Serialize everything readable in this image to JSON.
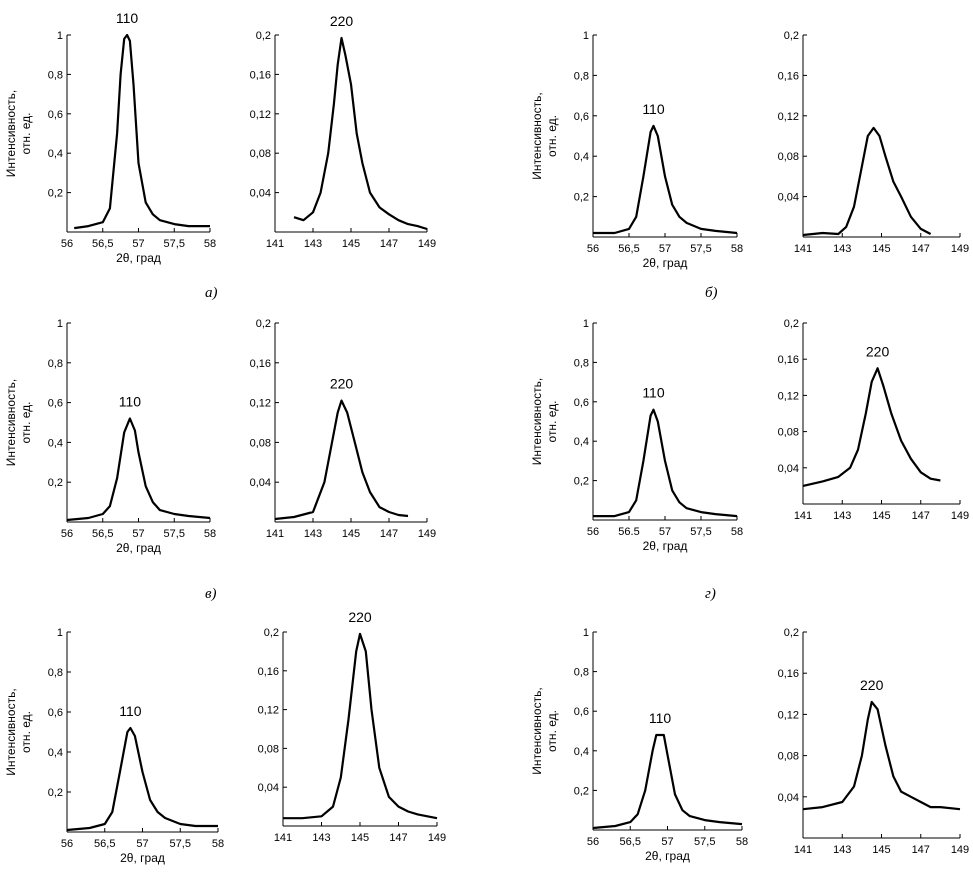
{
  "ylabel_line1": "Интенсивность,",
  "ylabel_line2": "отн. ед.",
  "xlabel": "2θ, град",
  "panel_labels": [
    "а)",
    "б)",
    "в)",
    "г)"
  ],
  "chart_data": [
    {
      "type": "line",
      "peak_label": "110",
      "xlim": [
        56,
        58
      ],
      "ylim": [
        0,
        1
      ],
      "xticks": [
        "56",
        "56,5",
        "57",
        "57,5",
        "58"
      ],
      "yticks": [
        "1",
        "0,8",
        "0,6",
        "0,4",
        "0,2"
      ],
      "peak_center": 56.84,
      "series": [
        {
          "x": [
            56.1,
            56.3,
            56.5,
            56.6,
            56.7,
            56.75,
            56.8,
            56.84,
            56.88,
            56.93,
            57.0,
            57.1,
            57.2,
            57.3,
            57.5,
            57.7,
            58.0
          ],
          "y": [
            0.02,
            0.03,
            0.05,
            0.12,
            0.5,
            0.8,
            0.98,
            1.0,
            0.97,
            0.75,
            0.35,
            0.15,
            0.09,
            0.06,
            0.04,
            0.03,
            0.03
          ]
        }
      ]
    },
    {
      "type": "line",
      "peak_label": "220",
      "xlim": [
        141,
        149
      ],
      "ylim": [
        0,
        0.2
      ],
      "xticks": [
        "141",
        "143",
        "145",
        "147",
        "149"
      ],
      "yticks": [
        "0,2",
        "0,16",
        "0,12",
        "0,08",
        "0,04"
      ],
      "peak_center": 144.5,
      "series": [
        {
          "x": [
            142.0,
            142.5,
            143.0,
            143.4,
            143.8,
            144.1,
            144.3,
            144.5,
            144.7,
            145.0,
            145.3,
            145.6,
            146.0,
            146.5,
            147.0,
            147.5,
            148.0,
            148.5,
            149.0
          ],
          "y": [
            0.015,
            0.012,
            0.02,
            0.04,
            0.08,
            0.13,
            0.17,
            0.197,
            0.18,
            0.15,
            0.1,
            0.07,
            0.04,
            0.025,
            0.018,
            0.012,
            0.008,
            0.006,
            0.003
          ]
        }
      ]
    },
    {
      "type": "line",
      "peak_label": "110",
      "xlim": [
        56,
        58
      ],
      "ylim": [
        0,
        1
      ],
      "xticks": [
        "56",
        "56,5",
        "57",
        "57,5",
        "58"
      ],
      "yticks": [
        "1",
        "0,8",
        "0,6",
        "0,4",
        "0,2"
      ],
      "peak_center": 56.84,
      "series": [
        {
          "x": [
            56.0,
            56.3,
            56.5,
            56.6,
            56.7,
            56.8,
            56.84,
            56.9,
            57.0,
            57.1,
            57.2,
            57.3,
            57.5,
            57.7,
            58.0
          ],
          "y": [
            0.02,
            0.02,
            0.04,
            0.1,
            0.3,
            0.52,
            0.55,
            0.5,
            0.3,
            0.16,
            0.1,
            0.07,
            0.04,
            0.03,
            0.02
          ]
        }
      ]
    },
    {
      "type": "line",
      "xlim": [
        141,
        149
      ],
      "ylim": [
        0,
        0.2
      ],
      "xticks": [
        "141",
        "143",
        "145",
        "147",
        "149"
      ],
      "yticks": [
        "0,2",
        "0,16",
        "0,12",
        "0,08",
        "0,04"
      ],
      "peak_center": 144.6,
      "series": [
        {
          "x": [
            141.0,
            142.0,
            142.8,
            143.2,
            143.6,
            144.0,
            144.3,
            144.6,
            144.9,
            145.2,
            145.6,
            146.0,
            146.5,
            147.0,
            147.5
          ],
          "y": [
            0.002,
            0.004,
            0.003,
            0.01,
            0.03,
            0.07,
            0.1,
            0.108,
            0.1,
            0.08,
            0.055,
            0.04,
            0.02,
            0.008,
            0.003
          ]
        }
      ]
    },
    {
      "type": "line",
      "peak_label": "110",
      "xlim": [
        56,
        58
      ],
      "ylim": [
        0,
        1
      ],
      "xticks": [
        "56",
        "56,5",
        "57",
        "57,5",
        "58"
      ],
      "yticks": [
        "1",
        "0,8",
        "0,6",
        "0,4",
        "0,2"
      ],
      "peak_center": 56.88,
      "series": [
        {
          "x": [
            56.0,
            56.3,
            56.5,
            56.6,
            56.7,
            56.8,
            56.88,
            56.95,
            57.0,
            57.1,
            57.2,
            57.3,
            57.5,
            57.7,
            58.0
          ],
          "y": [
            0.01,
            0.02,
            0.04,
            0.08,
            0.22,
            0.45,
            0.52,
            0.46,
            0.35,
            0.18,
            0.1,
            0.06,
            0.04,
            0.03,
            0.02
          ]
        }
      ]
    },
    {
      "type": "line",
      "peak_label": "220",
      "xlim": [
        141,
        149
      ],
      "ylim": [
        0,
        0.2
      ],
      "xticks": [
        "141",
        "143",
        "145",
        "147",
        "149"
      ],
      "yticks": [
        "0,2",
        "0,16",
        "0,12",
        "0,08",
        "0,04"
      ],
      "peak_center": 144.5,
      "series": [
        {
          "x": [
            141.0,
            142.0,
            143.0,
            143.6,
            144.0,
            144.3,
            144.5,
            144.8,
            145.2,
            145.6,
            146.0,
            146.5,
            147.0,
            147.5,
            148.0
          ],
          "y": [
            0.003,
            0.005,
            0.01,
            0.04,
            0.08,
            0.11,
            0.122,
            0.11,
            0.08,
            0.05,
            0.03,
            0.015,
            0.01,
            0.007,
            0.006
          ]
        }
      ]
    },
    {
      "type": "line",
      "peak_label": "110",
      "xlim": [
        56,
        58
      ],
      "ylim": [
        0,
        1
      ],
      "xticks": [
        "56",
        "56.5",
        "57",
        "57,5",
        "58"
      ],
      "yticks": [
        "1",
        "0,8",
        "0,6",
        "0,4",
        "0,2"
      ],
      "peak_center": 56.84,
      "series": [
        {
          "x": [
            56.0,
            56.3,
            56.5,
            56.6,
            56.7,
            56.8,
            56.84,
            56.9,
            57.0,
            57.1,
            57.2,
            57.3,
            57.5,
            57.7,
            58.0
          ],
          "y": [
            0.02,
            0.02,
            0.04,
            0.1,
            0.3,
            0.53,
            0.56,
            0.5,
            0.3,
            0.15,
            0.09,
            0.06,
            0.04,
            0.03,
            0.02
          ]
        }
      ]
    },
    {
      "type": "line",
      "peak_label": "220",
      "xlim": [
        141,
        149
      ],
      "ylim": [
        0,
        0.2
      ],
      "xticks": [
        "141",
        "143",
        "145",
        "147",
        "149"
      ],
      "yticks": [
        "0,2",
        "0,16",
        "0,12",
        "0,08",
        "0,04"
      ],
      "peak_center": 144.8,
      "series": [
        {
          "x": [
            141.0,
            142.0,
            142.8,
            143.4,
            143.8,
            144.2,
            144.5,
            144.8,
            145.1,
            145.5,
            146.0,
            146.5,
            147.0,
            147.5,
            148.0
          ],
          "y": [
            0.02,
            0.025,
            0.03,
            0.04,
            0.06,
            0.1,
            0.135,
            0.15,
            0.13,
            0.1,
            0.07,
            0.05,
            0.035,
            0.028,
            0.026
          ]
        }
      ]
    },
    {
      "type": "line",
      "peak_label": "110",
      "xlim": [
        56,
        58
      ],
      "ylim": [
        0,
        1
      ],
      "xticks": [
        "56",
        "56,5",
        "57",
        "57,5",
        "58"
      ],
      "yticks": [
        "1",
        "0,8",
        "0,6",
        "0,4",
        "0,2"
      ],
      "peak_center": 56.84,
      "series": [
        {
          "x": [
            56.0,
            56.3,
            56.5,
            56.6,
            56.7,
            56.8,
            56.84,
            56.9,
            57.0,
            57.1,
            57.2,
            57.3,
            57.5,
            57.7,
            58.0
          ],
          "y": [
            0.01,
            0.02,
            0.04,
            0.1,
            0.3,
            0.5,
            0.52,
            0.48,
            0.3,
            0.16,
            0.1,
            0.07,
            0.04,
            0.03,
            0.03
          ]
        }
      ]
    },
    {
      "type": "line",
      "peak_label": "220",
      "xlim": [
        141,
        149
      ],
      "ylim": [
        0,
        0.2
      ],
      "xticks": [
        "141",
        "143",
        "145",
        "147",
        "149"
      ],
      "yticks": [
        "0,2",
        "0,16",
        "0,12",
        "0,08",
        "0,04"
      ],
      "peak_center": 145.0,
      "series": [
        {
          "x": [
            141.0,
            142.0,
            143.0,
            143.6,
            144.0,
            144.4,
            144.8,
            145.0,
            145.3,
            145.6,
            146.0,
            146.5,
            147.0,
            147.5,
            148.0,
            149.0
          ],
          "y": [
            0.008,
            0.008,
            0.01,
            0.02,
            0.05,
            0.11,
            0.18,
            0.198,
            0.18,
            0.12,
            0.06,
            0.03,
            0.02,
            0.015,
            0.012,
            0.008
          ]
        }
      ]
    },
    {
      "type": "line",
      "peak_label": "110",
      "xlim": [
        56,
        58
      ],
      "ylim": [
        0,
        1
      ],
      "xticks": [
        "56",
        "56,5",
        "57",
        "57,5",
        "58"
      ],
      "yticks": [
        "1",
        "0,8",
        "0,6",
        "0,4",
        "0,2"
      ],
      "peak_center": 56.9,
      "series": [
        {
          "x": [
            56.0,
            56.3,
            56.5,
            56.6,
            56.7,
            56.8,
            56.85,
            56.95,
            57.0,
            57.1,
            57.2,
            57.3,
            57.5,
            57.7,
            58.0
          ],
          "y": [
            0.01,
            0.02,
            0.04,
            0.08,
            0.2,
            0.4,
            0.48,
            0.48,
            0.38,
            0.18,
            0.1,
            0.07,
            0.05,
            0.04,
            0.03
          ]
        }
      ]
    },
    {
      "type": "line",
      "peak_label": "220",
      "xlim": [
        141,
        149
      ],
      "ylim": [
        0,
        0.2
      ],
      "xticks": [
        "141",
        "143",
        "145",
        "147",
        "149"
      ],
      "yticks": [
        "0,2",
        "0,16",
        "0,12",
        "0,08",
        "0,04"
      ],
      "peak_center": 144.5,
      "series": [
        {
          "x": [
            141.0,
            142.0,
            143.0,
            143.6,
            144.0,
            144.3,
            144.5,
            144.8,
            145.2,
            145.6,
            146.0,
            146.5,
            147.0,
            147.5,
            148.0,
            149.0
          ],
          "y": [
            0.028,
            0.03,
            0.035,
            0.05,
            0.08,
            0.115,
            0.132,
            0.125,
            0.09,
            0.06,
            0.045,
            0.04,
            0.035,
            0.03,
            0.03,
            0.028
          ]
        }
      ]
    }
  ]
}
